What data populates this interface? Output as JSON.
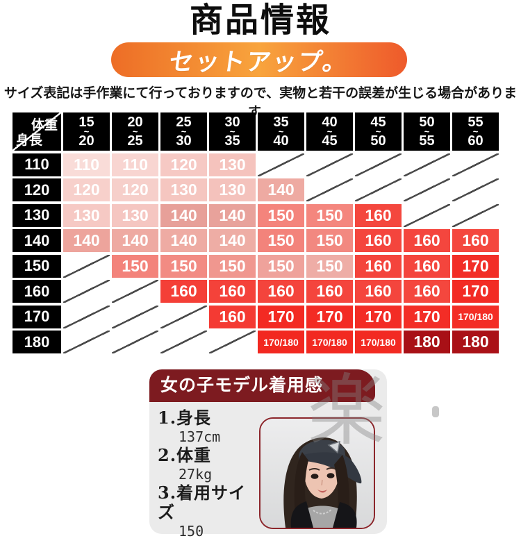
{
  "header": {
    "title": "商品情報",
    "banner_label": "セットアップ。",
    "banner_colors": {
      "left": "#ed6d26",
      "mid": "#f8a43d",
      "right": "#ee5a2b"
    },
    "note": "サイズ表記は手作業にて行っておりますので、実物と若干の誤差が生じる場合があります。"
  },
  "size_chart": {
    "type": "table",
    "corner": {
      "weight_label": "体重",
      "height_label": "身長"
    },
    "weight_columns": [
      {
        "min": "15",
        "max": "20"
      },
      {
        "min": "20",
        "max": "25"
      },
      {
        "min": "25",
        "max": "30"
      },
      {
        "min": "30",
        "max": "35"
      },
      {
        "min": "35",
        "max": "40"
      },
      {
        "min": "40",
        "max": "45"
      },
      {
        "min": "45",
        "max": "50"
      },
      {
        "min": "50",
        "max": "55"
      },
      {
        "min": "55",
        "max": "60"
      }
    ],
    "rows": [
      {
        "height": "110",
        "cells": [
          "110",
          "110",
          "120",
          "130",
          "",
          "",
          "",
          "",
          ""
        ],
        "colors": [
          "#f9dcd8",
          "#f8d5d1",
          "#f6c9c4",
          "#f5c3bd",
          "",
          "",
          "",
          "",
          ""
        ]
      },
      {
        "height": "120",
        "cells": [
          "120",
          "120",
          "130",
          "130",
          "140",
          "",
          "",
          "",
          ""
        ],
        "colors": [
          "#f7d0cb",
          "#f6cfca",
          "#f5c6c0",
          "#f4c2bc",
          "#eeaaa2",
          "",
          "",
          "",
          ""
        ]
      },
      {
        "height": "130",
        "cells": [
          "130",
          "130",
          "140",
          "140",
          "150",
          "150",
          "160",
          "",
          ""
        ],
        "colors": [
          "#f6c9c4",
          "#f5c6c1",
          "#e7a099",
          "#e8a29b",
          "#f4847c",
          "#f4867e",
          "#f4473e",
          "",
          ""
        ]
      },
      {
        "height": "140",
        "cells": [
          "140",
          "140",
          "140",
          "140",
          "150",
          "150",
          "160",
          "160",
          "160"
        ],
        "colors": [
          "#eda49c",
          "#eeaaa2",
          "#eeaba3",
          "#eeada5",
          "#f3837b",
          "#f28880",
          "#f4453d",
          "#f4463e",
          "#f4473e"
        ]
      },
      {
        "height": "150",
        "cells": [
          "",
          "150",
          "150",
          "150",
          "150",
          "150",
          "160",
          "160",
          "170"
        ],
        "colors": [
          "",
          "#f3837b",
          "#f28b83",
          "#f0978f",
          "#efa29b",
          "#eeada6",
          "#f4443c",
          "#f4453d",
          "#f22e27"
        ]
      },
      {
        "height": "160",
        "cells": [
          "",
          "",
          "160",
          "160",
          "160",
          "160",
          "160",
          "160",
          "170"
        ],
        "colors": [
          "",
          "",
          "#f43f37",
          "#f4423a",
          "#f4443c",
          "#f4453d",
          "#f4453d",
          "#f4473e",
          "#f22b24"
        ]
      },
      {
        "height": "170",
        "cells": [
          "",
          "",
          "",
          "160",
          "170",
          "170",
          "170",
          "170",
          "170/180"
        ],
        "colors": [
          "",
          "",
          "",
          "#f43a33",
          "#f32a23",
          "#f32b24",
          "#f32c25",
          "#f32d26",
          "#f32d26"
        ]
      },
      {
        "height": "180",
        "cells": [
          "",
          "",
          "",
          "",
          "170/180",
          "170/180",
          "170/180",
          "180",
          "180"
        ],
        "colors": [
          "",
          "",
          "",
          "",
          "#f22820",
          "#f22921",
          "#f22a22",
          "#a81016",
          "#aa1117"
        ]
      }
    ],
    "header_bg": "#000000",
    "strike_color": "#4a4a4a"
  },
  "model_card": {
    "header": "女の子モデル着用感",
    "header_bg": "#7d1b20",
    "watermark": "楽",
    "items": [
      {
        "label": "1.身長",
        "value": "137cm"
      },
      {
        "label": "2.体重",
        "value": "27kg"
      },
      {
        "label": "3.着用サイズ",
        "value": "150"
      }
    ],
    "photo_alt": "girl-model-photo"
  }
}
